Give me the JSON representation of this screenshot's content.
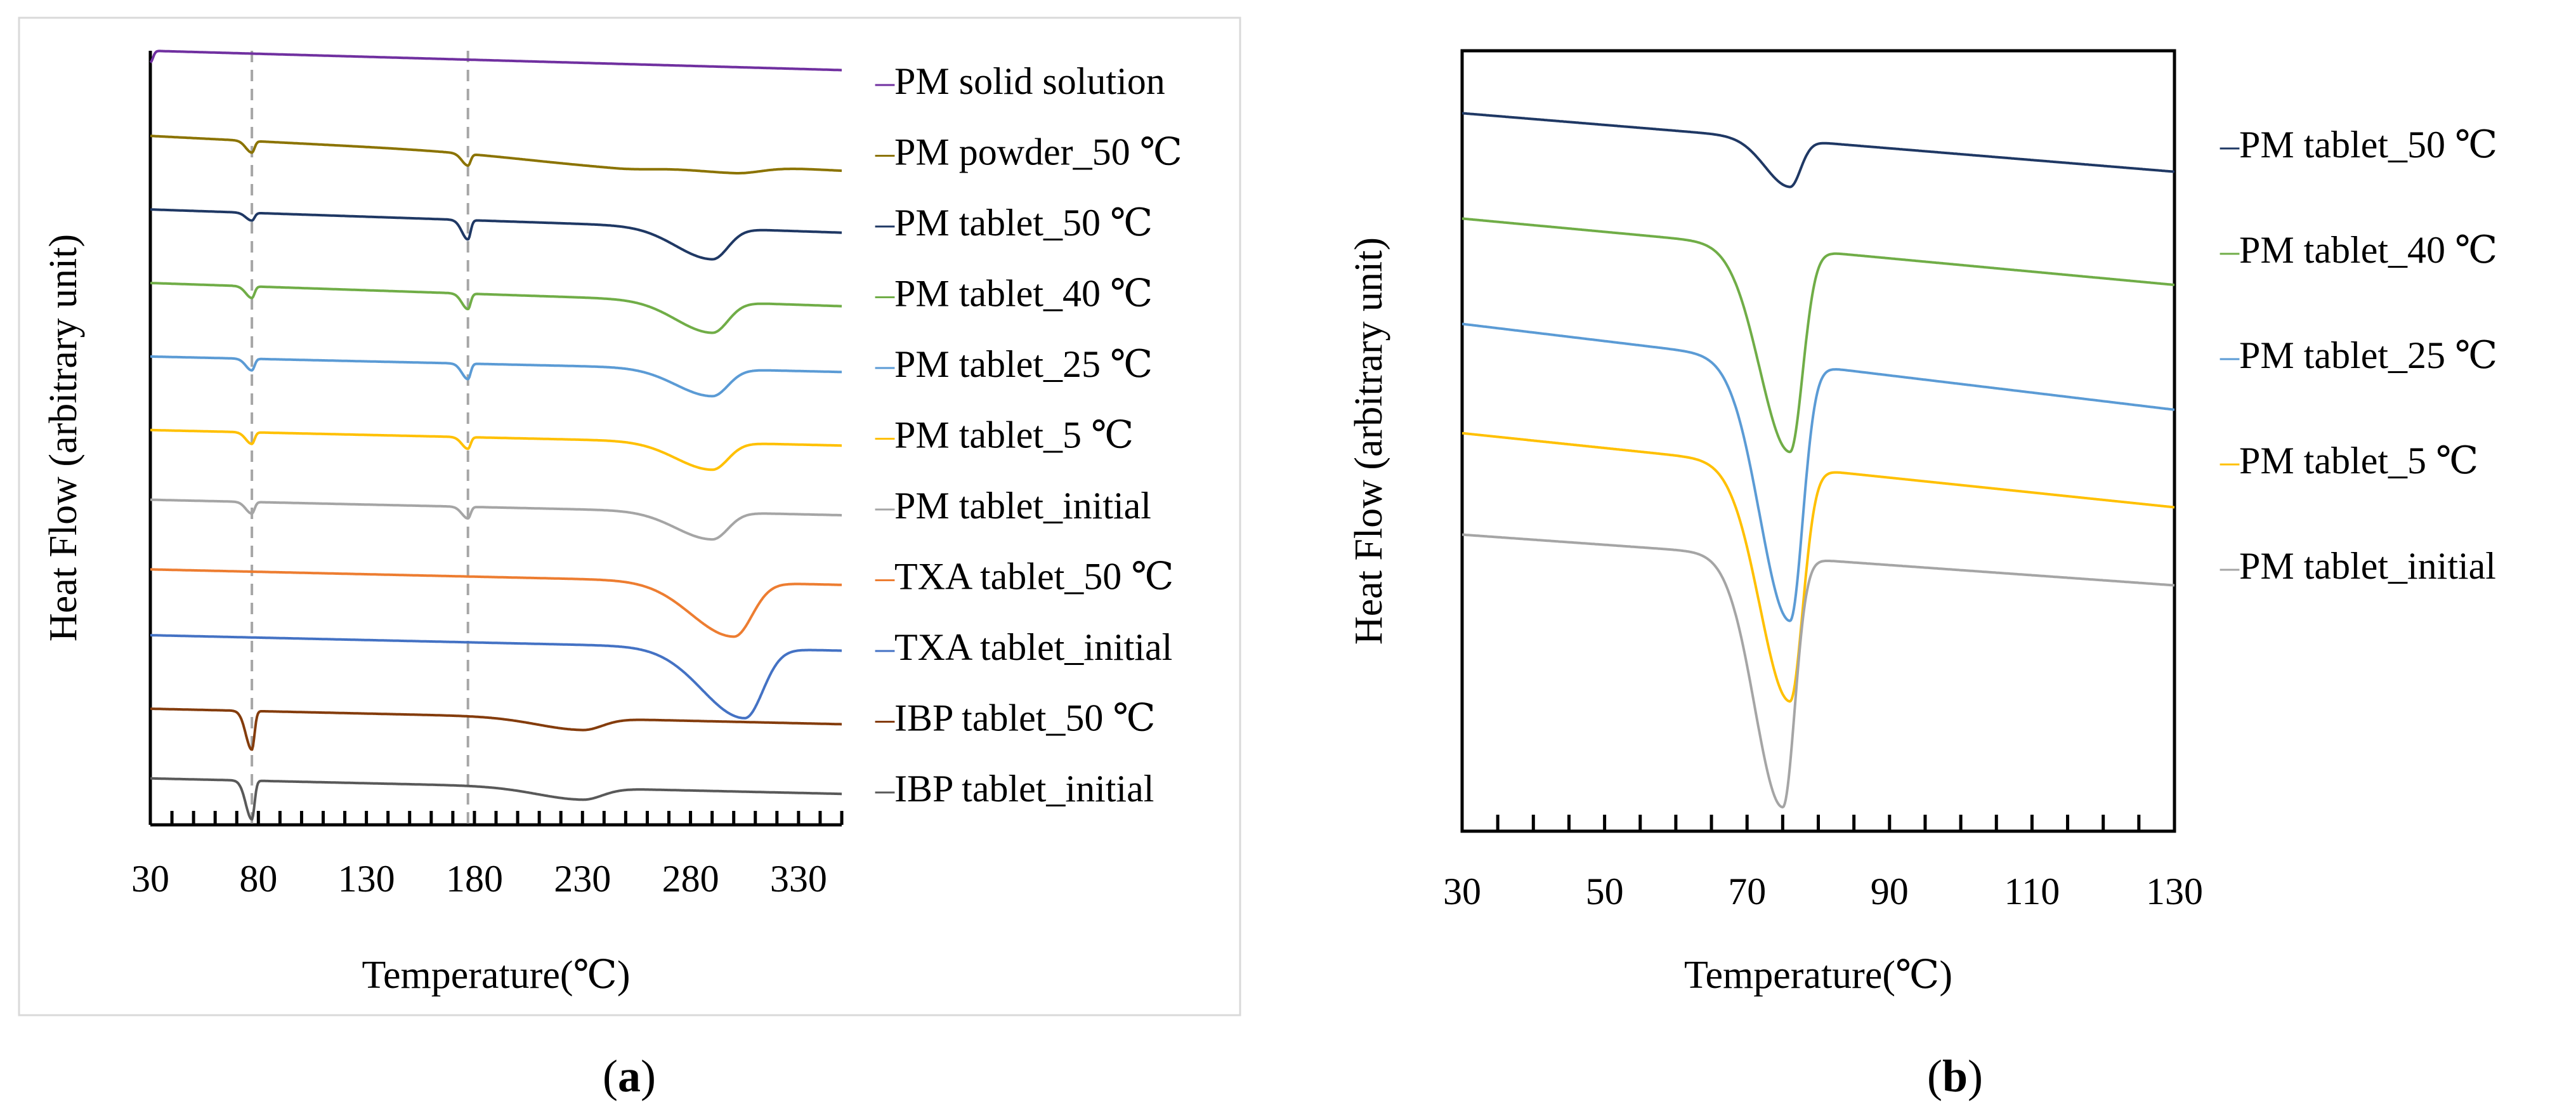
{
  "chart_data": [
    {
      "panel": "a",
      "type": "line",
      "panel_label": "a",
      "xlabel": "Temperature(℃)",
      "ylabel": "Heat Flow (arbitrary unit)",
      "xlim": [
        30,
        350
      ],
      "xticks": [
        30,
        80,
        130,
        180,
        230,
        280,
        330
      ],
      "reference_lines_x": [
        77,
        177
      ],
      "series": [
        {
          "name": "PM solid solution",
          "color": "#7030A0",
          "baseline": [
            100,
            97.5
          ],
          "events": [
            {
              "t": 30,
              "depth": 1.5,
              "width": 2
            }
          ]
        },
        {
          "name": "PM powder_50 ℃",
          "color": "#8B7300",
          "baseline": [
            89,
            84.5
          ],
          "events": [
            {
              "t": 77,
              "depth": 1.5,
              "width": 2
            },
            {
              "t": 177,
              "depth": 1.5,
              "width": 2
            },
            {
              "t": 245,
              "depth": 1.0,
              "width": 30
            },
            {
              "t": 300,
              "depth": 1.0,
              "width": 20
            }
          ]
        },
        {
          "name": "PM tablet_50 ℃",
          "color": "#1F3864",
          "baseline": [
            79.5,
            76.5
          ],
          "events": [
            {
              "t": 77,
              "depth": 1.0,
              "width": 2
            },
            {
              "t": 177,
              "depth": 2.5,
              "width": 2
            },
            {
              "t": 290,
              "depth": 4.0,
              "width": 12
            }
          ]
        },
        {
          "name": "PM tablet_40 ℃",
          "color": "#70AD47",
          "baseline": [
            70,
            67
          ],
          "events": [
            {
              "t": 77,
              "depth": 1.5,
              "width": 2
            },
            {
              "t": 177,
              "depth": 2.0,
              "width": 2
            },
            {
              "t": 290,
              "depth": 4.0,
              "width": 12
            }
          ]
        },
        {
          "name": "PM tablet_25 ℃",
          "color": "#5B9BD5",
          "baseline": [
            60.5,
            58.5
          ],
          "events": [
            {
              "t": 77,
              "depth": 1.5,
              "width": 2
            },
            {
              "t": 177,
              "depth": 2.0,
              "width": 2
            },
            {
              "t": 290,
              "depth": 3.5,
              "width": 12
            }
          ]
        },
        {
          "name": "PM tablet_5 ℃",
          "color": "#FFC000",
          "baseline": [
            51,
            49
          ],
          "events": [
            {
              "t": 77,
              "depth": 1.5,
              "width": 2
            },
            {
              "t": 177,
              "depth": 1.5,
              "width": 2
            },
            {
              "t": 290,
              "depth": 3.5,
              "width": 12
            }
          ]
        },
        {
          "name": "PM tablet_initial",
          "color": "#A5A5A5",
          "baseline": [
            42,
            40
          ],
          "events": [
            {
              "t": 77,
              "depth": 1.5,
              "width": 2
            },
            {
              "t": 177,
              "depth": 1.5,
              "width": 2
            },
            {
              "t": 290,
              "depth": 3.5,
              "width": 12
            }
          ]
        },
        {
          "name": "TXA tablet_50 ℃",
          "color": "#ED7D31",
          "baseline": [
            33,
            31
          ],
          "events": [
            {
              "t": 300,
              "depth": 7.0,
              "width": 14
            }
          ]
        },
        {
          "name": "TXA tablet_initial",
          "color": "#4472C4",
          "baseline": [
            24.5,
            22.5
          ],
          "events": [
            {
              "t": 305,
              "depth": 9.0,
              "width": 14
            }
          ]
        },
        {
          "name": "IBP tablet_50 ℃",
          "color": "#843C0C",
          "baseline": [
            15,
            13
          ],
          "events": [
            {
              "t": 77,
              "depth": 5.0,
              "width": 2
            },
            {
              "t": 230,
              "depth": 1.5,
              "width": 15
            }
          ]
        },
        {
          "name": "IBP tablet_initial",
          "color": "#595959",
          "baseline": [
            6,
            4
          ],
          "events": [
            {
              "t": 77,
              "depth": 5.0,
              "width": 2
            },
            {
              "t": 230,
              "depth": 1.5,
              "width": 15
            }
          ]
        }
      ]
    },
    {
      "panel": "b",
      "type": "line",
      "panel_label": "b",
      "xlabel": "Temperature(℃)",
      "ylabel": "Heat Flow (arbitrary unit)",
      "xlim": [
        30,
        130
      ],
      "xticks": [
        30,
        50,
        70,
        90,
        110,
        130
      ],
      "series": [
        {
          "name": "PM tablet_50 ℃",
          "color": "#1F3864",
          "baseline": [
            92,
            84.5
          ],
          "events": [
            {
              "t": 76,
              "depth": 6.0,
              "width": 2.5
            }
          ]
        },
        {
          "name": "PM tablet_40 ℃",
          "color": "#70AD47",
          "baseline": [
            78.5,
            70
          ],
          "events": [
            {
              "t": 76,
              "depth": 26.0,
              "width": 3
            }
          ]
        },
        {
          "name": "PM tablet_25 ℃",
          "color": "#5B9BD5",
          "baseline": [
            65,
            54
          ],
          "events": [
            {
              "t": 76,
              "depth": 33.0,
              "width": 3
            }
          ]
        },
        {
          "name": "PM tablet_5 ℃",
          "color": "#FFC000",
          "baseline": [
            51,
            41.5
          ],
          "events": [
            {
              "t": 76,
              "depth": 30.0,
              "width": 3
            }
          ]
        },
        {
          "name": "PM tablet_initial",
          "color": "#A5A5A5",
          "baseline": [
            38,
            31.5
          ],
          "events": [
            {
              "t": 75,
              "depth": 32.0,
              "width": 2.8
            }
          ]
        }
      ]
    }
  ]
}
